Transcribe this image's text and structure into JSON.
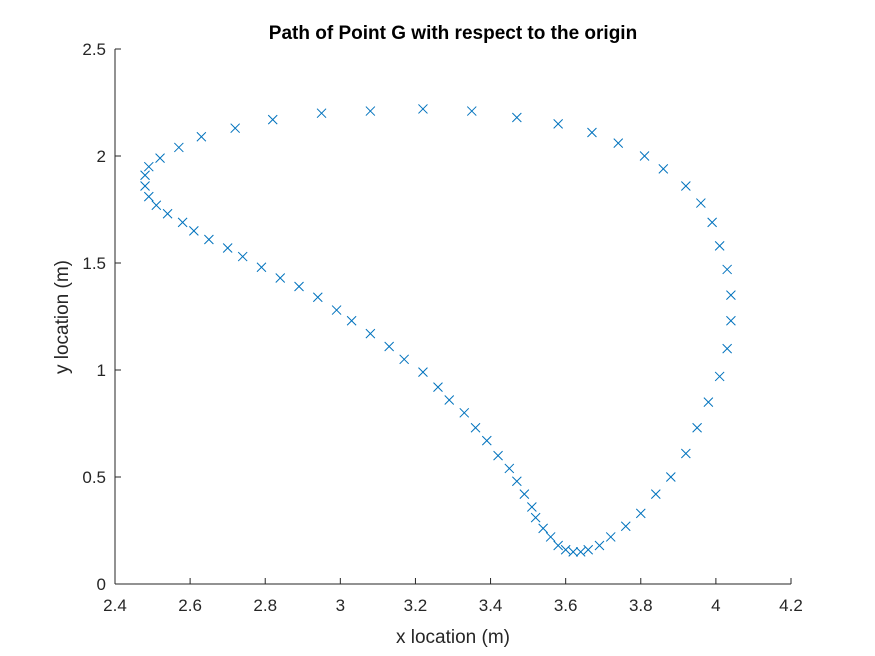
{
  "chart_data": {
    "type": "scatter",
    "title": "Path of Point G with respect to the origin",
    "xlabel": "x location (m)",
    "ylabel": "y location (m)",
    "xlim": [
      2.4,
      4.2
    ],
    "ylim": [
      0,
      2.5
    ],
    "xticks": [
      "2.4",
      "2.6",
      "2.8",
      "3",
      "3.2",
      "3.4",
      "3.6",
      "3.8",
      "4",
      "4.2"
    ],
    "yticks": [
      "0",
      "0.5",
      "1",
      "1.5",
      "2",
      "2.5"
    ],
    "grid": false,
    "legend": "none",
    "marker": "x",
    "marker_color": "#0072BD",
    "axis_color": "#262626",
    "series": [
      {
        "x": [
          2.48,
          2.49,
          2.52,
          2.57,
          2.63,
          2.72,
          2.82,
          2.95,
          3.08,
          3.22,
          3.35,
          3.47,
          3.58,
          3.67,
          3.74,
          3.81,
          3.86,
          3.92,
          3.96,
          3.99,
          4.01,
          4.03,
          4.04,
          4.04,
          4.03,
          4.01,
          3.98,
          3.95,
          3.92,
          3.88,
          3.84,
          3.8,
          3.76,
          3.72,
          3.69,
          3.66,
          3.64,
          3.62,
          3.6,
          3.58,
          3.56,
          3.54,
          3.52,
          3.51,
          3.49,
          3.47,
          3.45,
          3.42,
          3.39,
          3.36,
          3.33,
          3.29,
          3.26,
          3.22,
          3.17,
          3.13,
          3.08,
          3.03,
          2.99,
          2.94,
          2.89,
          2.84,
          2.79,
          2.74,
          2.7,
          2.65,
          2.61,
          2.58,
          2.54,
          2.51,
          2.49,
          2.48
        ],
        "y": [
          1.91,
          1.95,
          1.99,
          2.04,
          2.09,
          2.13,
          2.17,
          2.2,
          2.21,
          2.22,
          2.21,
          2.18,
          2.15,
          2.11,
          2.06,
          2.0,
          1.94,
          1.86,
          1.78,
          1.69,
          1.58,
          1.47,
          1.35,
          1.23,
          1.1,
          0.97,
          0.85,
          0.73,
          0.61,
          0.5,
          0.42,
          0.33,
          0.27,
          0.22,
          0.18,
          0.16,
          0.15,
          0.15,
          0.16,
          0.18,
          0.22,
          0.26,
          0.31,
          0.36,
          0.42,
          0.48,
          0.54,
          0.6,
          0.67,
          0.73,
          0.8,
          0.86,
          0.92,
          0.99,
          1.05,
          1.11,
          1.17,
          1.23,
          1.28,
          1.34,
          1.39,
          1.43,
          1.48,
          1.53,
          1.57,
          1.61,
          1.65,
          1.69,
          1.73,
          1.77,
          1.81,
          1.86
        ]
      }
    ]
  }
}
